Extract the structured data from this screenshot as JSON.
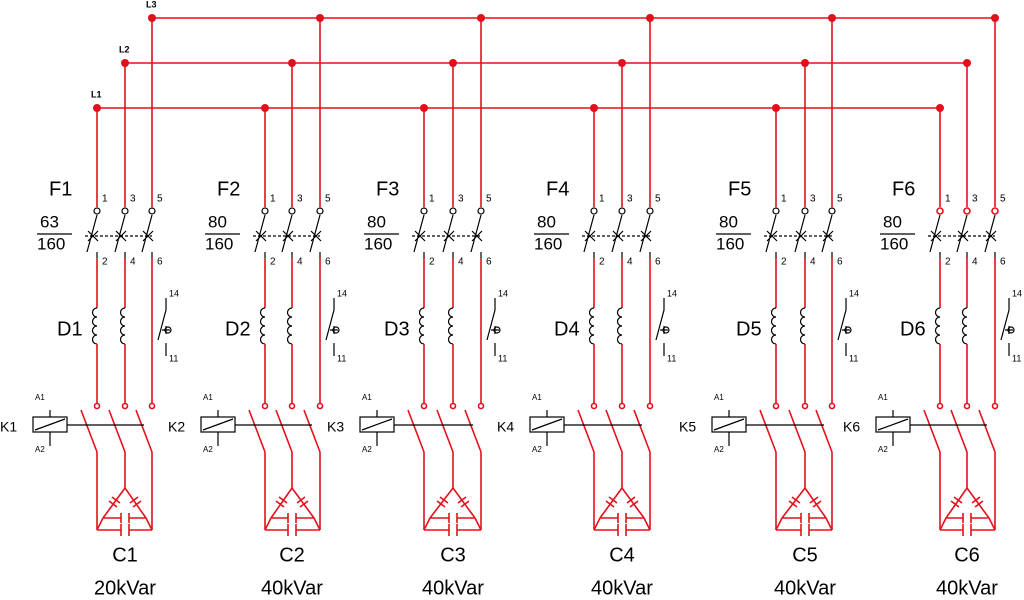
{
  "bus_labels": [
    "L1",
    "L2",
    "L3"
  ],
  "branches": [
    {
      "fuse": "F1",
      "rating_top": "63",
      "rating_bottom": "160",
      "terminals_in": [
        "1",
        "3",
        "5"
      ],
      "terminals_out": [
        "2",
        "4",
        "6"
      ],
      "relay": "D1",
      "aux_contacts": [
        "14",
        "11"
      ],
      "contactor": "K1",
      "coil": [
        "A1",
        "A2"
      ],
      "capacitor": "C1",
      "power": "20kVar"
    },
    {
      "fuse": "F2",
      "rating_top": "80",
      "rating_bottom": "160",
      "terminals_in": [
        "1",
        "3",
        "5"
      ],
      "terminals_out": [
        "2",
        "4",
        "6"
      ],
      "relay": "D2",
      "aux_contacts": [
        "14",
        "11"
      ],
      "contactor": "K2",
      "coil": [
        "A1",
        "A2"
      ],
      "capacitor": "C2",
      "power": "40kVar"
    },
    {
      "fuse": "F3",
      "rating_top": "80",
      "rating_bottom": "160",
      "terminals_in": [
        "1",
        "3",
        "5"
      ],
      "terminals_out": [
        "2",
        "4",
        "6"
      ],
      "relay": "D3",
      "aux_contacts": [
        "14",
        "11"
      ],
      "contactor": "K3",
      "coil": [
        "A1",
        "A2"
      ],
      "capacitor": "C3",
      "power": "40kVar"
    },
    {
      "fuse": "F4",
      "rating_top": "80",
      "rating_bottom": "160",
      "terminals_in": [
        "1",
        "3",
        "5"
      ],
      "terminals_out": [
        "2",
        "4",
        "6"
      ],
      "relay": "D4",
      "aux_contacts": [
        "14",
        "11"
      ],
      "contactor": "K4",
      "coil": [
        "A1",
        "A2"
      ],
      "capacitor": "C4",
      "power": "40kVar"
    },
    {
      "fuse": "F5",
      "rating_top": "80",
      "rating_bottom": "160",
      "terminals_in": [
        "1",
        "3",
        "5"
      ],
      "terminals_out": [
        "2",
        "4",
        "6"
      ],
      "relay": "D5",
      "aux_contacts": [
        "14",
        "11"
      ],
      "contactor": "K5",
      "coil": [
        "A1",
        "A2"
      ],
      "capacitor": "C5",
      "power": "40kVar"
    },
    {
      "fuse": "F6",
      "rating_top": "80",
      "rating_bottom": "160",
      "terminals_in": [
        "1",
        "3",
        "5"
      ],
      "terminals_out": [
        "2",
        "4",
        "6"
      ],
      "relay": "D6",
      "aux_contacts": [
        "14",
        "11"
      ],
      "contactor": "K6",
      "coil": [
        "A1",
        "A2"
      ],
      "capacitor": "C6",
      "power": "40kVar"
    }
  ]
}
